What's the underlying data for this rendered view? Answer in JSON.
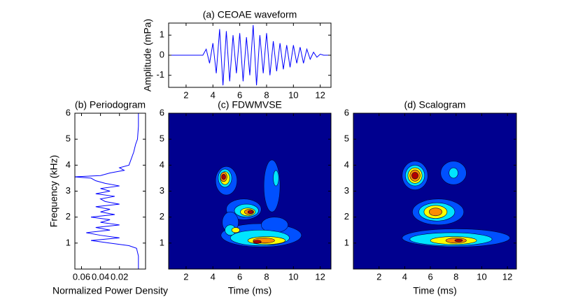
{
  "chart_data": [
    {
      "type": "line",
      "title": "(a) CEOAE waveform",
      "ylabel": "Amplitude (mPa)",
      "color": "#0000ff",
      "xlim": [
        0.7,
        12.8
      ],
      "ylim": [
        -1.6,
        1.6
      ],
      "xticks": [
        2,
        4,
        6,
        8,
        10,
        12
      ],
      "yticks": [
        -1,
        0,
        1
      ],
      "x": [
        0.75,
        1.0,
        1.25,
        1.5,
        1.75,
        2.0,
        2.25,
        2.5,
        2.75,
        3.0,
        3.25,
        3.5,
        3.75,
        4.0,
        4.25,
        4.5,
        4.75,
        5.0,
        5.25,
        5.5,
        5.75,
        6.0,
        6.25,
        6.5,
        6.75,
        7.0,
        7.25,
        7.5,
        7.75,
        8.0,
        8.25,
        8.5,
        8.75,
        9.0,
        9.25,
        9.5,
        9.75,
        10.0,
        10.25,
        10.5,
        10.75,
        11.0,
        11.25,
        11.5,
        11.75,
        12.0,
        12.25,
        12.5,
        12.75
      ],
      "values": [
        0,
        0,
        0,
        0,
        0,
        0,
        0,
        0,
        0,
        0,
        0,
        0.3,
        -0.4,
        0.6,
        -0.9,
        1.3,
        -1.5,
        1.2,
        -1.3,
        1.0,
        -0.9,
        1.1,
        -1.3,
        0.9,
        -1.0,
        1.5,
        -1.5,
        1.0,
        -0.9,
        1.1,
        -1.0,
        0.7,
        -0.8,
        0.6,
        -0.7,
        0.5,
        -0.6,
        0.5,
        -0.4,
        0.4,
        -0.4,
        0.3,
        -0.2,
        0.15,
        -0.1,
        0.05,
        0,
        0,
        0
      ]
    },
    {
      "type": "line",
      "orientation": "horizontal",
      "title": "(b) Periodogram",
      "xlabel": "Normalized Power Density",
      "ylabel": "Frequency (kHz)",
      "color": "#0000ff",
      "xlim": [
        0.067,
        -0.0075
      ],
      "ylim": [
        0,
        6
      ],
      "xticks": [
        0.06,
        0.04,
        0.02
      ],
      "yticks": [
        1,
        2,
        3,
        4,
        5,
        6
      ],
      "y": [
        0,
        0.5,
        0.8,
        0.9,
        1.0,
        1.1,
        1.2,
        1.3,
        1.4,
        1.5,
        1.6,
        1.7,
        1.8,
        1.9,
        2.0,
        2.1,
        2.2,
        2.3,
        2.4,
        2.5,
        2.6,
        2.7,
        2.8,
        2.9,
        3.0,
        3.1,
        3.2,
        3.3,
        3.4,
        3.5,
        3.55,
        3.6,
        3.7,
        3.8,
        3.9,
        4.0,
        4.2,
        4.5,
        4.8,
        5.0,
        5.5,
        6.0
      ],
      "values": [
        0,
        0,
        0.002,
        0.01,
        0.03,
        0.05,
        0.02,
        0.04,
        0.055,
        0.03,
        0.045,
        0.02,
        0.04,
        0.03,
        0.05,
        0.025,
        0.04,
        0.03,
        0.045,
        0.02,
        0.035,
        0.04,
        0.025,
        0.045,
        0.03,
        0.04,
        0.02,
        0.035,
        0.045,
        0.05,
        0.068,
        0.04,
        0.03,
        0.015,
        0.02,
        0.01,
        0.008,
        0.005,
        0.003,
        0.001,
        0,
        0
      ]
    },
    {
      "type": "contour",
      "title": "(c) FDWMVSE",
      "xlabel": "Time (ms)",
      "xlim": [
        0.7,
        12.8
      ],
      "ylim": [
        0,
        6
      ],
      "xticks": [
        2,
        4,
        6,
        8,
        10,
        12
      ],
      "yticks": [
        1,
        2,
        3,
        4,
        5,
        6
      ],
      "background": "#00008f",
      "level_colors": [
        "#0050ff",
        "#00e5ff",
        "#ffff00",
        "#ff8c00",
        "#b00000"
      ],
      "regions": [
        {
          "x": 5.0,
          "y": 3.4,
          "rx": 0.8,
          "ry": 0.55,
          "level": 0
        },
        {
          "x": 6.3,
          "y": 2.3,
          "rx": 1.3,
          "ry": 0.4,
          "level": 0
        },
        {
          "x": 8.4,
          "y": 3.2,
          "rx": 0.6,
          "ry": 1.0,
          "level": 0
        },
        {
          "x": 7.6,
          "y": 1.3,
          "rx": 3.0,
          "ry": 0.45,
          "level": 0
        },
        {
          "x": 5.3,
          "y": 1.8,
          "rx": 0.6,
          "ry": 0.4,
          "level": 0
        },
        {
          "x": 8.6,
          "y": 1.7,
          "rx": 1.0,
          "ry": 0.3,
          "level": 0
        },
        {
          "x": 4.9,
          "y": 3.5,
          "rx": 0.5,
          "ry": 0.35,
          "level": 1
        },
        {
          "x": 8.7,
          "y": 3.5,
          "rx": 0.2,
          "ry": 0.3,
          "level": 1
        },
        {
          "x": 6.5,
          "y": 2.25,
          "rx": 0.9,
          "ry": 0.25,
          "level": 1
        },
        {
          "x": 7.5,
          "y": 1.2,
          "rx": 2.2,
          "ry": 0.3,
          "level": 1
        },
        {
          "x": 5.3,
          "y": 1.5,
          "rx": 0.4,
          "ry": 0.2,
          "level": 1
        },
        {
          "x": 4.9,
          "y": 3.5,
          "rx": 0.35,
          "ry": 0.25,
          "level": 2
        },
        {
          "x": 6.6,
          "y": 2.2,
          "rx": 0.55,
          "ry": 0.15,
          "level": 2
        },
        {
          "x": 8.0,
          "y": 1.1,
          "rx": 1.4,
          "ry": 0.15,
          "level": 2
        },
        {
          "x": 5.7,
          "y": 1.5,
          "rx": 0.3,
          "ry": 0.1,
          "level": 2
        },
        {
          "x": 4.8,
          "y": 3.55,
          "rx": 0.25,
          "ry": 0.18,
          "level": 3
        },
        {
          "x": 6.7,
          "y": 2.2,
          "rx": 0.35,
          "ry": 0.1,
          "level": 3
        },
        {
          "x": 7.8,
          "y": 1.1,
          "rx": 0.8,
          "ry": 0.1,
          "level": 3
        },
        {
          "x": 4.8,
          "y": 3.55,
          "rx": 0.15,
          "ry": 0.1,
          "level": 4
        },
        {
          "x": 6.8,
          "y": 2.2,
          "rx": 0.2,
          "ry": 0.06,
          "level": 4
        },
        {
          "x": 7.3,
          "y": 1.05,
          "rx": 0.3,
          "ry": 0.06,
          "level": 4
        }
      ]
    },
    {
      "type": "contour",
      "title": "(d) Scalogram",
      "xlabel": "Time (ms)",
      "xlim": [
        0,
        12.7
      ],
      "ylim": [
        0,
        6
      ],
      "xticks": [
        2,
        4,
        6,
        8,
        10,
        12
      ],
      "yticks": [
        1,
        2,
        3,
        4,
        5,
        6
      ],
      "background": "#00008f",
      "level_colors": [
        "#0050ff",
        "#00e5ff",
        "#ffff00",
        "#ff8c00",
        "#b00000"
      ],
      "regions": [
        {
          "x": 4.8,
          "y": 3.6,
          "rx": 1.0,
          "ry": 0.55,
          "level": 0
        },
        {
          "x": 7.8,
          "y": 3.7,
          "rx": 1.0,
          "ry": 0.45,
          "level": 0
        },
        {
          "x": 6.6,
          "y": 2.2,
          "rx": 2.0,
          "ry": 0.5,
          "level": 0
        },
        {
          "x": 8.0,
          "y": 1.2,
          "rx": 4.2,
          "ry": 0.35,
          "level": 0
        },
        {
          "x": 4.8,
          "y": 3.6,
          "rx": 0.75,
          "ry": 0.4,
          "level": 1
        },
        {
          "x": 7.8,
          "y": 3.7,
          "rx": 0.35,
          "ry": 0.2,
          "level": 1
        },
        {
          "x": 6.5,
          "y": 2.2,
          "rx": 1.4,
          "ry": 0.35,
          "level": 1
        },
        {
          "x": 7.6,
          "y": 1.15,
          "rx": 3.2,
          "ry": 0.25,
          "level": 1
        },
        {
          "x": 4.8,
          "y": 3.6,
          "rx": 0.55,
          "ry": 0.3,
          "level": 2
        },
        {
          "x": 6.4,
          "y": 2.2,
          "rx": 0.9,
          "ry": 0.25,
          "level": 2
        },
        {
          "x": 7.8,
          "y": 1.1,
          "rx": 1.8,
          "ry": 0.15,
          "level": 2
        },
        {
          "x": 4.8,
          "y": 3.6,
          "rx": 0.4,
          "ry": 0.22,
          "level": 3
        },
        {
          "x": 6.4,
          "y": 2.2,
          "rx": 0.5,
          "ry": 0.15,
          "level": 3
        },
        {
          "x": 8.0,
          "y": 1.1,
          "rx": 0.8,
          "ry": 0.1,
          "level": 3
        },
        {
          "x": 4.8,
          "y": 3.6,
          "rx": 0.25,
          "ry": 0.13,
          "level": 4
        },
        {
          "x": 8.2,
          "y": 1.1,
          "rx": 0.3,
          "ry": 0.05,
          "level": 4
        }
      ]
    }
  ]
}
